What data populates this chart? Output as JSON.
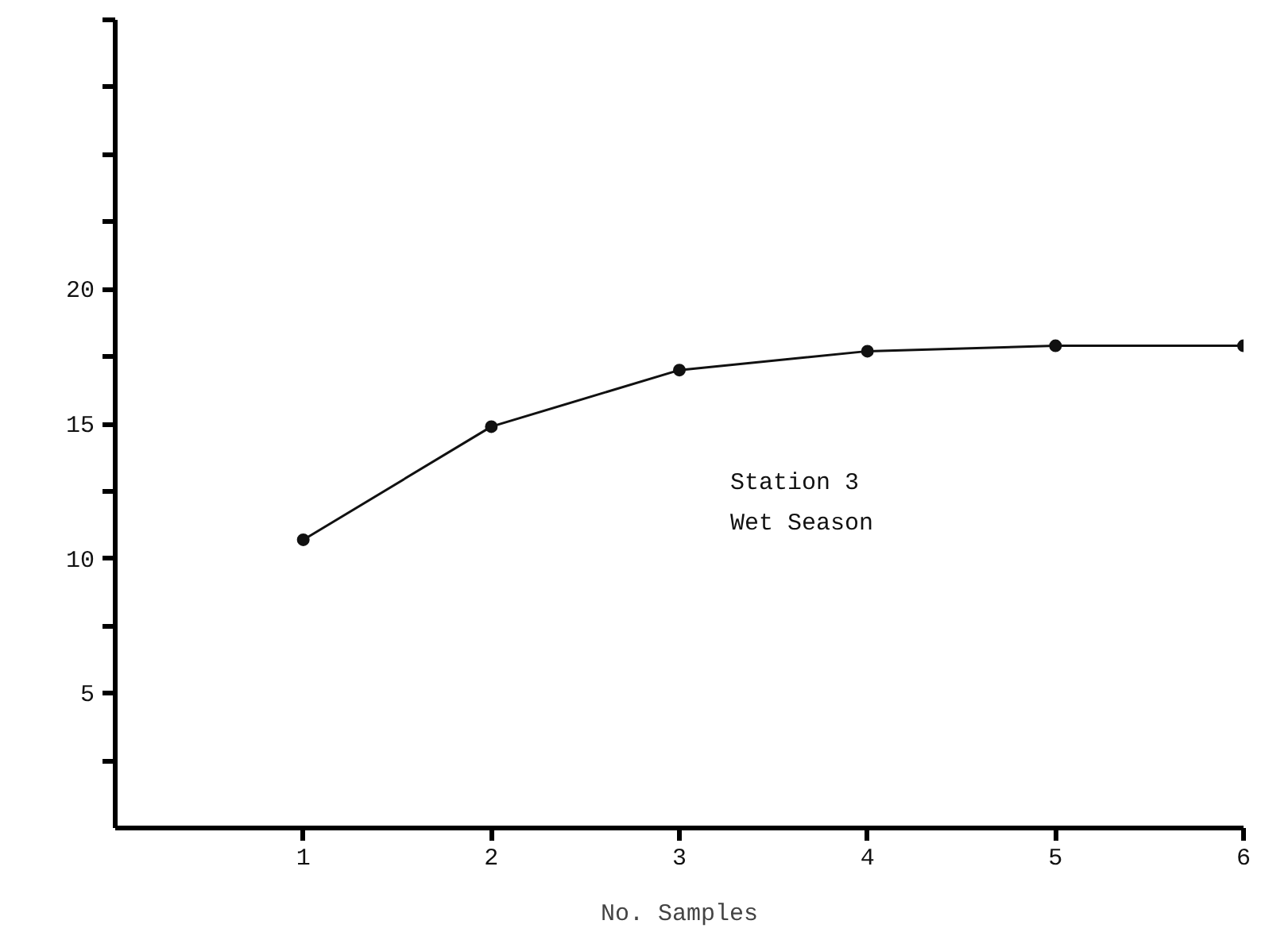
{
  "chart_data": {
    "type": "line",
    "xlabel": "No. Samples",
    "x": [
      1,
      2,
      3,
      4,
      5,
      6
    ],
    "series": [
      {
        "color": "#111111",
        "values": [
          10.7,
          14.9,
          17.0,
          17.7,
          17.9,
          17.9
        ]
      }
    ],
    "xlim": [
      0,
      6
    ],
    "ylim": [
      0,
      30
    ],
    "xticks": [
      1,
      2,
      3,
      4,
      5,
      6
    ],
    "yticks": [
      {
        "value": 2.5,
        "label": null
      },
      5,
      {
        "value": 7.5,
        "label": null
      },
      10,
      {
        "value": 12.5,
        "label": null
      },
      15,
      {
        "value": 17.5,
        "label": null
      },
      20,
      {
        "value": 22.5,
        "label": null
      },
      {
        "value": 25,
        "label": null
      },
      {
        "value": 27.5,
        "label": null
      },
      {
        "value": 30,
        "label": null
      }
    ],
    "annotations": [
      "Station 3\nWet Season"
    ],
    "grid": false,
    "marker": "circle",
    "line_style": "solid"
  }
}
